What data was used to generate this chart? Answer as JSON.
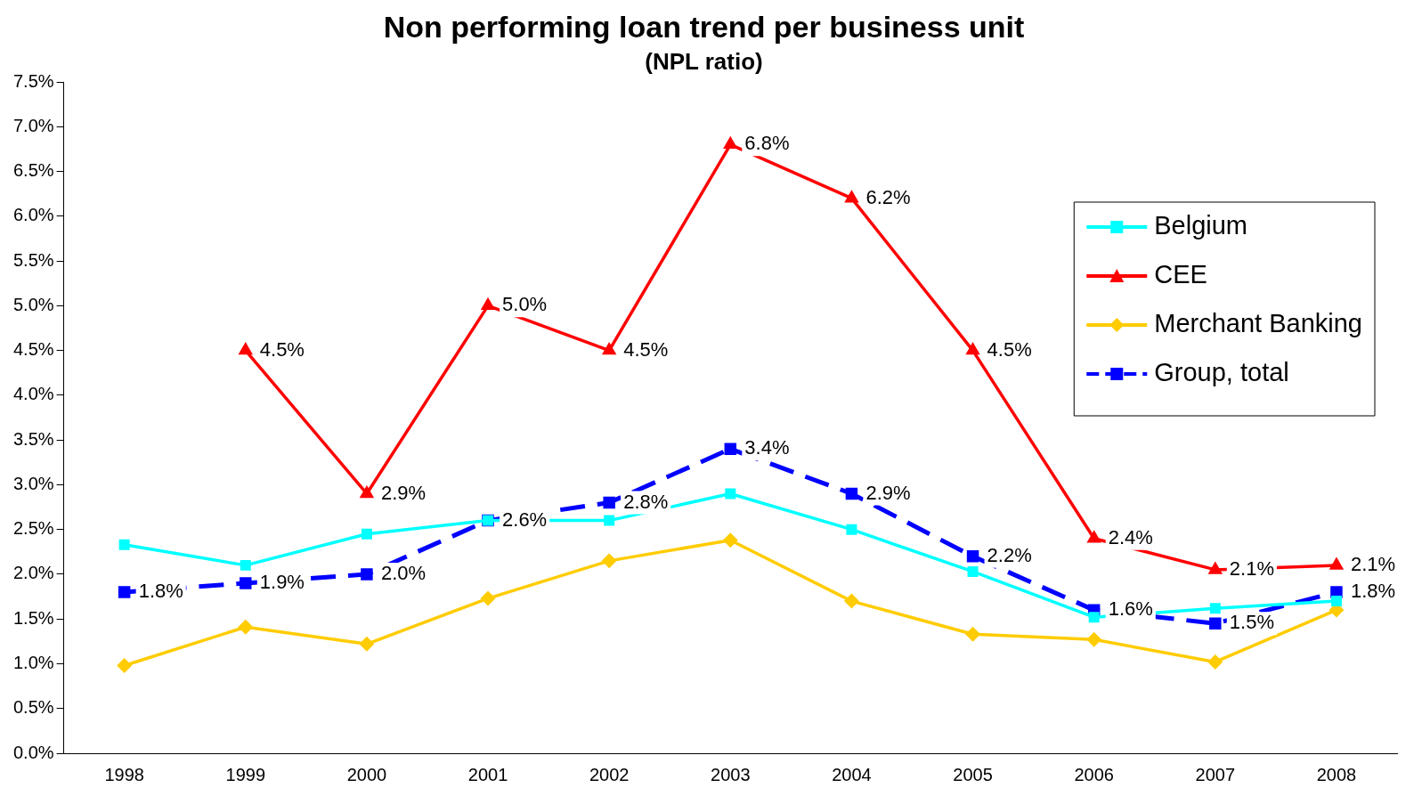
{
  "chart_data": {
    "type": "line",
    "title": "Non performing loan trend per business unit",
    "subtitle": "(NPL ratio)",
    "categories": [
      "1998",
      "1999",
      "2000",
      "2001",
      "2002",
      "2003",
      "2004",
      "2005",
      "2006",
      "2007",
      "2008"
    ],
    "series": [
      {
        "name": "Belgium",
        "color": "#00ffff",
        "marker": "square",
        "line_style": "solid",
        "values": [
          2.33,
          2.1,
          2.45,
          2.6,
          2.6,
          2.9,
          2.5,
          2.03,
          1.52,
          1.62,
          1.7
        ]
      },
      {
        "name": "CEE",
        "color": "#ff0000",
        "marker": "triangle",
        "line_style": "solid",
        "values": [
          null,
          4.5,
          2.9,
          5.0,
          4.5,
          6.8,
          6.2,
          4.5,
          2.4,
          2.05,
          2.1
        ],
        "value_labels": [
          null,
          "4.5%",
          "2.9%",
          "5.0%",
          "4.5%",
          "6.8%",
          "6.2%",
          "4.5%",
          "2.4%",
          "2.1%",
          "2.1%"
        ]
      },
      {
        "name": "Merchant Banking",
        "color": "#ffcc00",
        "marker": "diamond",
        "line_style": "solid",
        "values": [
          0.98,
          1.41,
          1.22,
          1.73,
          2.15,
          2.38,
          1.7,
          1.33,
          1.27,
          1.02,
          1.6
        ]
      },
      {
        "name": "Group, total",
        "color": "#0000ff",
        "marker": "square",
        "line_style": "dashed",
        "values": [
          1.8,
          1.9,
          2.0,
          2.6,
          2.8,
          3.4,
          2.9,
          2.2,
          1.6,
          1.45,
          1.8
        ],
        "value_labels": [
          "1.8%",
          "1.9%",
          "2.0%",
          "2.6%",
          "2.8%",
          "3.4%",
          "2.9%",
          "2.2%",
          "1.6%",
          "1.5%",
          "1.8%"
        ]
      }
    ],
    "ylim": [
      0,
      7.5
    ],
    "yticks": [
      {
        "value": 0,
        "label": "0.0%"
      },
      {
        "value": 0.5,
        "label": "0.5%"
      },
      {
        "value": 1,
        "label": "1.0%"
      },
      {
        "value": 1.5,
        "label": "1.5%"
      },
      {
        "value": 2,
        "label": "2.0%"
      },
      {
        "value": 2.5,
        "label": "2.5%"
      },
      {
        "value": 3,
        "label": "3.0%"
      },
      {
        "value": 3.5,
        "label": "3.5%"
      },
      {
        "value": 4,
        "label": "4.0%"
      },
      {
        "value": 4.5,
        "label": "4.5%"
      },
      {
        "value": 5,
        "label": "5.0%"
      },
      {
        "value": 5.5,
        "label": "5.5%"
      },
      {
        "value": 6,
        "label": "6.0%"
      },
      {
        "value": 6.5,
        "label": "6.5%"
      },
      {
        "value": 7,
        "label": "7.0%"
      },
      {
        "value": 7.5,
        "label": "7.5%"
      }
    ],
    "grid": false,
    "legend": "top right"
  }
}
